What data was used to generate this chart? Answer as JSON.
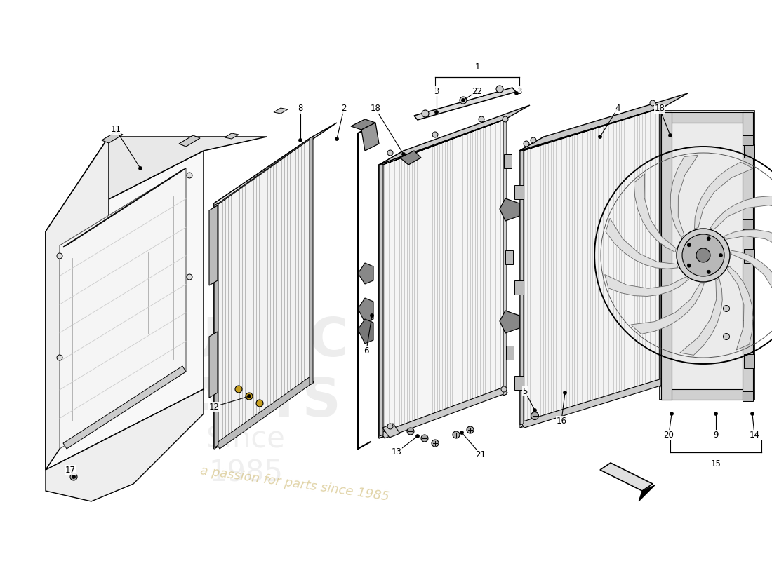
{
  "background_color": "#ffffff",
  "line_color": "#000000",
  "component_edge": "#000000",
  "fin_color": "#bbbbbb",
  "shroud_fill": "#f0f0f0",
  "radiator_fill": "#f5f5f5",
  "frame_fill": "#dddddd",
  "fan_fill": "#e8e8e8",
  "watermark_color1": "#c8c8c8",
  "watermark_color2": "#c8b060",
  "watermark_alpha": 0.4,
  "watermark_text": "a passion for parts since 1985"
}
